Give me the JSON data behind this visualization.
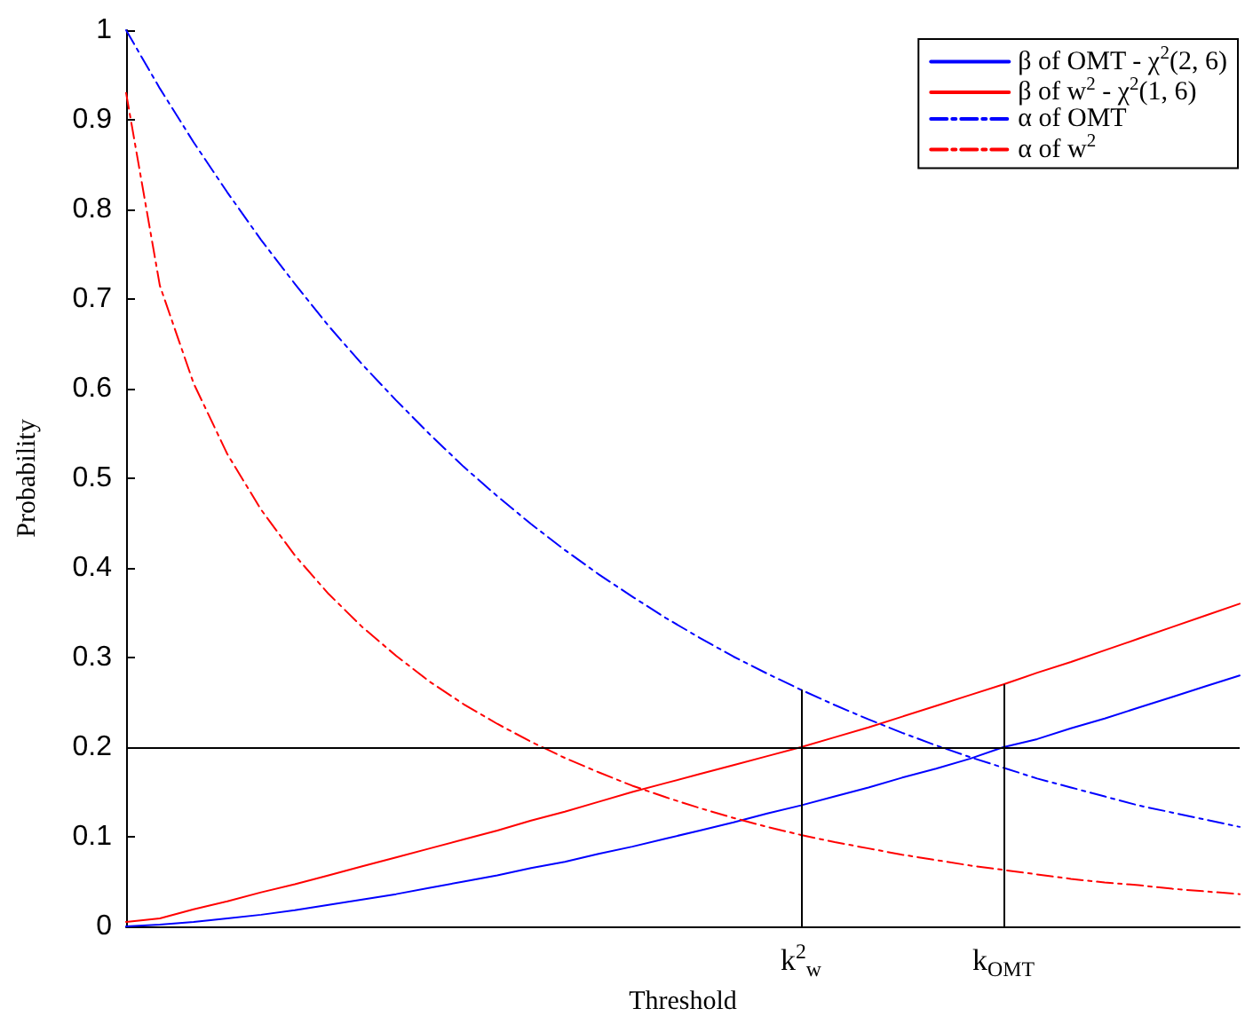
{
  "chart_data": {
    "type": "line",
    "xlabel": "Threshold",
    "ylabel": "Probability",
    "categories": [
      null,
      null,
      null,
      null,
      null,
      null,
      null,
      null,
      null,
      null,
      null,
      null,
      null,
      null,
      null,
      null,
      null,
      null,
      null,
      null,
      "k$^{2}$$_{w}$",
      null,
      null,
      null,
      null,
      null,
      "k$_{OMT}$",
      null,
      null,
      null,
      null,
      null,
      null,
      null
    ],
    "series": [
      {
        "name": "β of OMT - χ$^{2}$(2, 6)",
        "color": "#0000ff",
        "line_style": "solid",
        "values": [
          0,
          0.002,
          0.005,
          0.009,
          0.013,
          0.018,
          0.024,
          0.03,
          0.036,
          0.043,
          0.05,
          0.057,
          0.065,
          0.072,
          0.081,
          0.089,
          0.098,
          0.107,
          0.116,
          0.126,
          0.135,
          0.145,
          0.155,
          0.166,
          0.176,
          0.187,
          0.2,
          0.209,
          0.221,
          0.232,
          0.244,
          0.256,
          0.268,
          0.28
        ]
      },
      {
        "name": "β of w$^{2}$ - χ$^{2}$(1, 6)",
        "color": "#ff0000",
        "line_style": "solid",
        "values": [
          0.005,
          0.009,
          0.019,
          0.028,
          0.038,
          0.047,
          0.057,
          0.067,
          0.077,
          0.087,
          0.097,
          0.107,
          0.118,
          0.128,
          0.139,
          0.15,
          0.16,
          0.17,
          0.18,
          0.19,
          0.2,
          0.211,
          0.222,
          0.234,
          0.246,
          0.258,
          0.27,
          0.283,
          0.295,
          0.308,
          0.321,
          0.334,
          0.347,
          0.36
        ]
      },
      {
        "name": "α of OMT",
        "color": "#0000ff",
        "line_style": "dashed",
        "values": [
          1,
          0.935,
          0.875,
          0.819,
          0.766,
          0.717,
          0.67,
          0.627,
          0.587,
          0.549,
          0.513,
          0.48,
          0.449,
          0.42,
          0.393,
          0.368,
          0.344,
          0.322,
          0.301,
          0.282,
          0.264,
          0.247,
          0.231,
          0.216,
          0.202,
          0.189,
          0.177,
          0.165,
          0.155,
          0.145,
          0.135,
          0.127,
          0.119,
          0.111
        ]
      },
      {
        "name": "α of w$^{2}$",
        "color": "#ff0000",
        "line_style": "dashed",
        "values": [
          0.93,
          0.715,
          0.606,
          0.527,
          0.465,
          0.414,
          0.371,
          0.334,
          0.302,
          0.273,
          0.248,
          0.226,
          0.206,
          0.188,
          0.172,
          0.157,
          0.144,
          0.132,
          0.121,
          0.111,
          0.102,
          0.094,
          0.087,
          0.08,
          0.074,
          0.068,
          0.063,
          0.058,
          0.053,
          0.049,
          0.046,
          0.042,
          0.039,
          0.036
        ]
      }
    ],
    "ylim": [
      0,
      1
    ],
    "yticks": [
      0,
      0.1,
      0.2,
      0.3,
      0.4,
      0.5,
      0.6,
      0.7,
      0.8,
      0.9,
      1
    ],
    "ref_lines": [
      {
        "axis": "y",
        "value": 0.2,
        "color": "#000000"
      },
      {
        "axis": "x",
        "value": "k$^{2}$$_{w}$",
        "color": "#000000"
      },
      {
        "axis": "x",
        "value": "k$_{OMT}$",
        "color": "#000000"
      }
    ],
    "grid": false,
    "legend": "top right",
    "marker": "none"
  }
}
